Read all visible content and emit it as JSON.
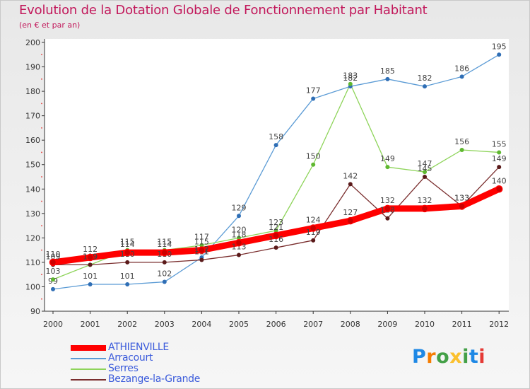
{
  "header": {
    "title": "Evolution de la Dotation Globale de Fonctionnement par Habitant",
    "subtitle": "(en € et par an)"
  },
  "brand": {
    "text": "Proxiti",
    "letters": [
      "P",
      "r",
      "o",
      "x",
      "i",
      "t",
      "i"
    ],
    "colors": [
      "#1e88e5",
      "#f57c00",
      "#43a047",
      "#fbc02d",
      "#43a047",
      "#1e88e5",
      "#e53935"
    ]
  },
  "chart_data": {
    "type": "line",
    "title": "Evolution de la Dotation Globale de Fonctionnement par Habitant",
    "subtitle": "(en € et par an)",
    "xlabel": "",
    "ylabel": "",
    "x": [
      2000,
      2001,
      2002,
      2003,
      2004,
      2005,
      2006,
      2007,
      2008,
      2009,
      2010,
      2011,
      2012
    ],
    "ylim": [
      90,
      200
    ],
    "yticks": [
      90,
      100,
      110,
      120,
      130,
      140,
      150,
      160,
      170,
      180,
      190,
      200
    ],
    "grid": false,
    "legend_position": "bottom-left",
    "series": [
      {
        "name": "ATHIENVILLE",
        "color": "#ff0000",
        "point_color": "#cc0000",
        "emphasis": true,
        "values": [
          110,
          112,
          114,
          114,
          115,
          118,
          121,
          124,
          127,
          132,
          132,
          133,
          140
        ]
      },
      {
        "name": "Arracourt",
        "color": "#5b9bd5",
        "point_color": "#2f6eb5",
        "emphasis": false,
        "values": [
          99,
          101,
          101,
          102,
          112,
          129,
          158,
          177,
          182,
          185,
          182,
          186,
          195
        ]
      },
      {
        "name": "Serres",
        "color": "#8ed45a",
        "point_color": "#5fb830",
        "emphasis": false,
        "values": [
          103,
          109,
          115,
          115,
          117,
          120,
          123,
          150,
          183,
          149,
          147,
          156,
          155
        ]
      },
      {
        "name": "Bezange-la-Grande",
        "color": "#7a2e2e",
        "point_color": "#5a1a1a",
        "emphasis": false,
        "values": [
          109,
          109,
          110,
          110,
          111,
          113,
          116,
          119,
          142,
          128,
          145,
          133,
          149
        ]
      }
    ]
  }
}
